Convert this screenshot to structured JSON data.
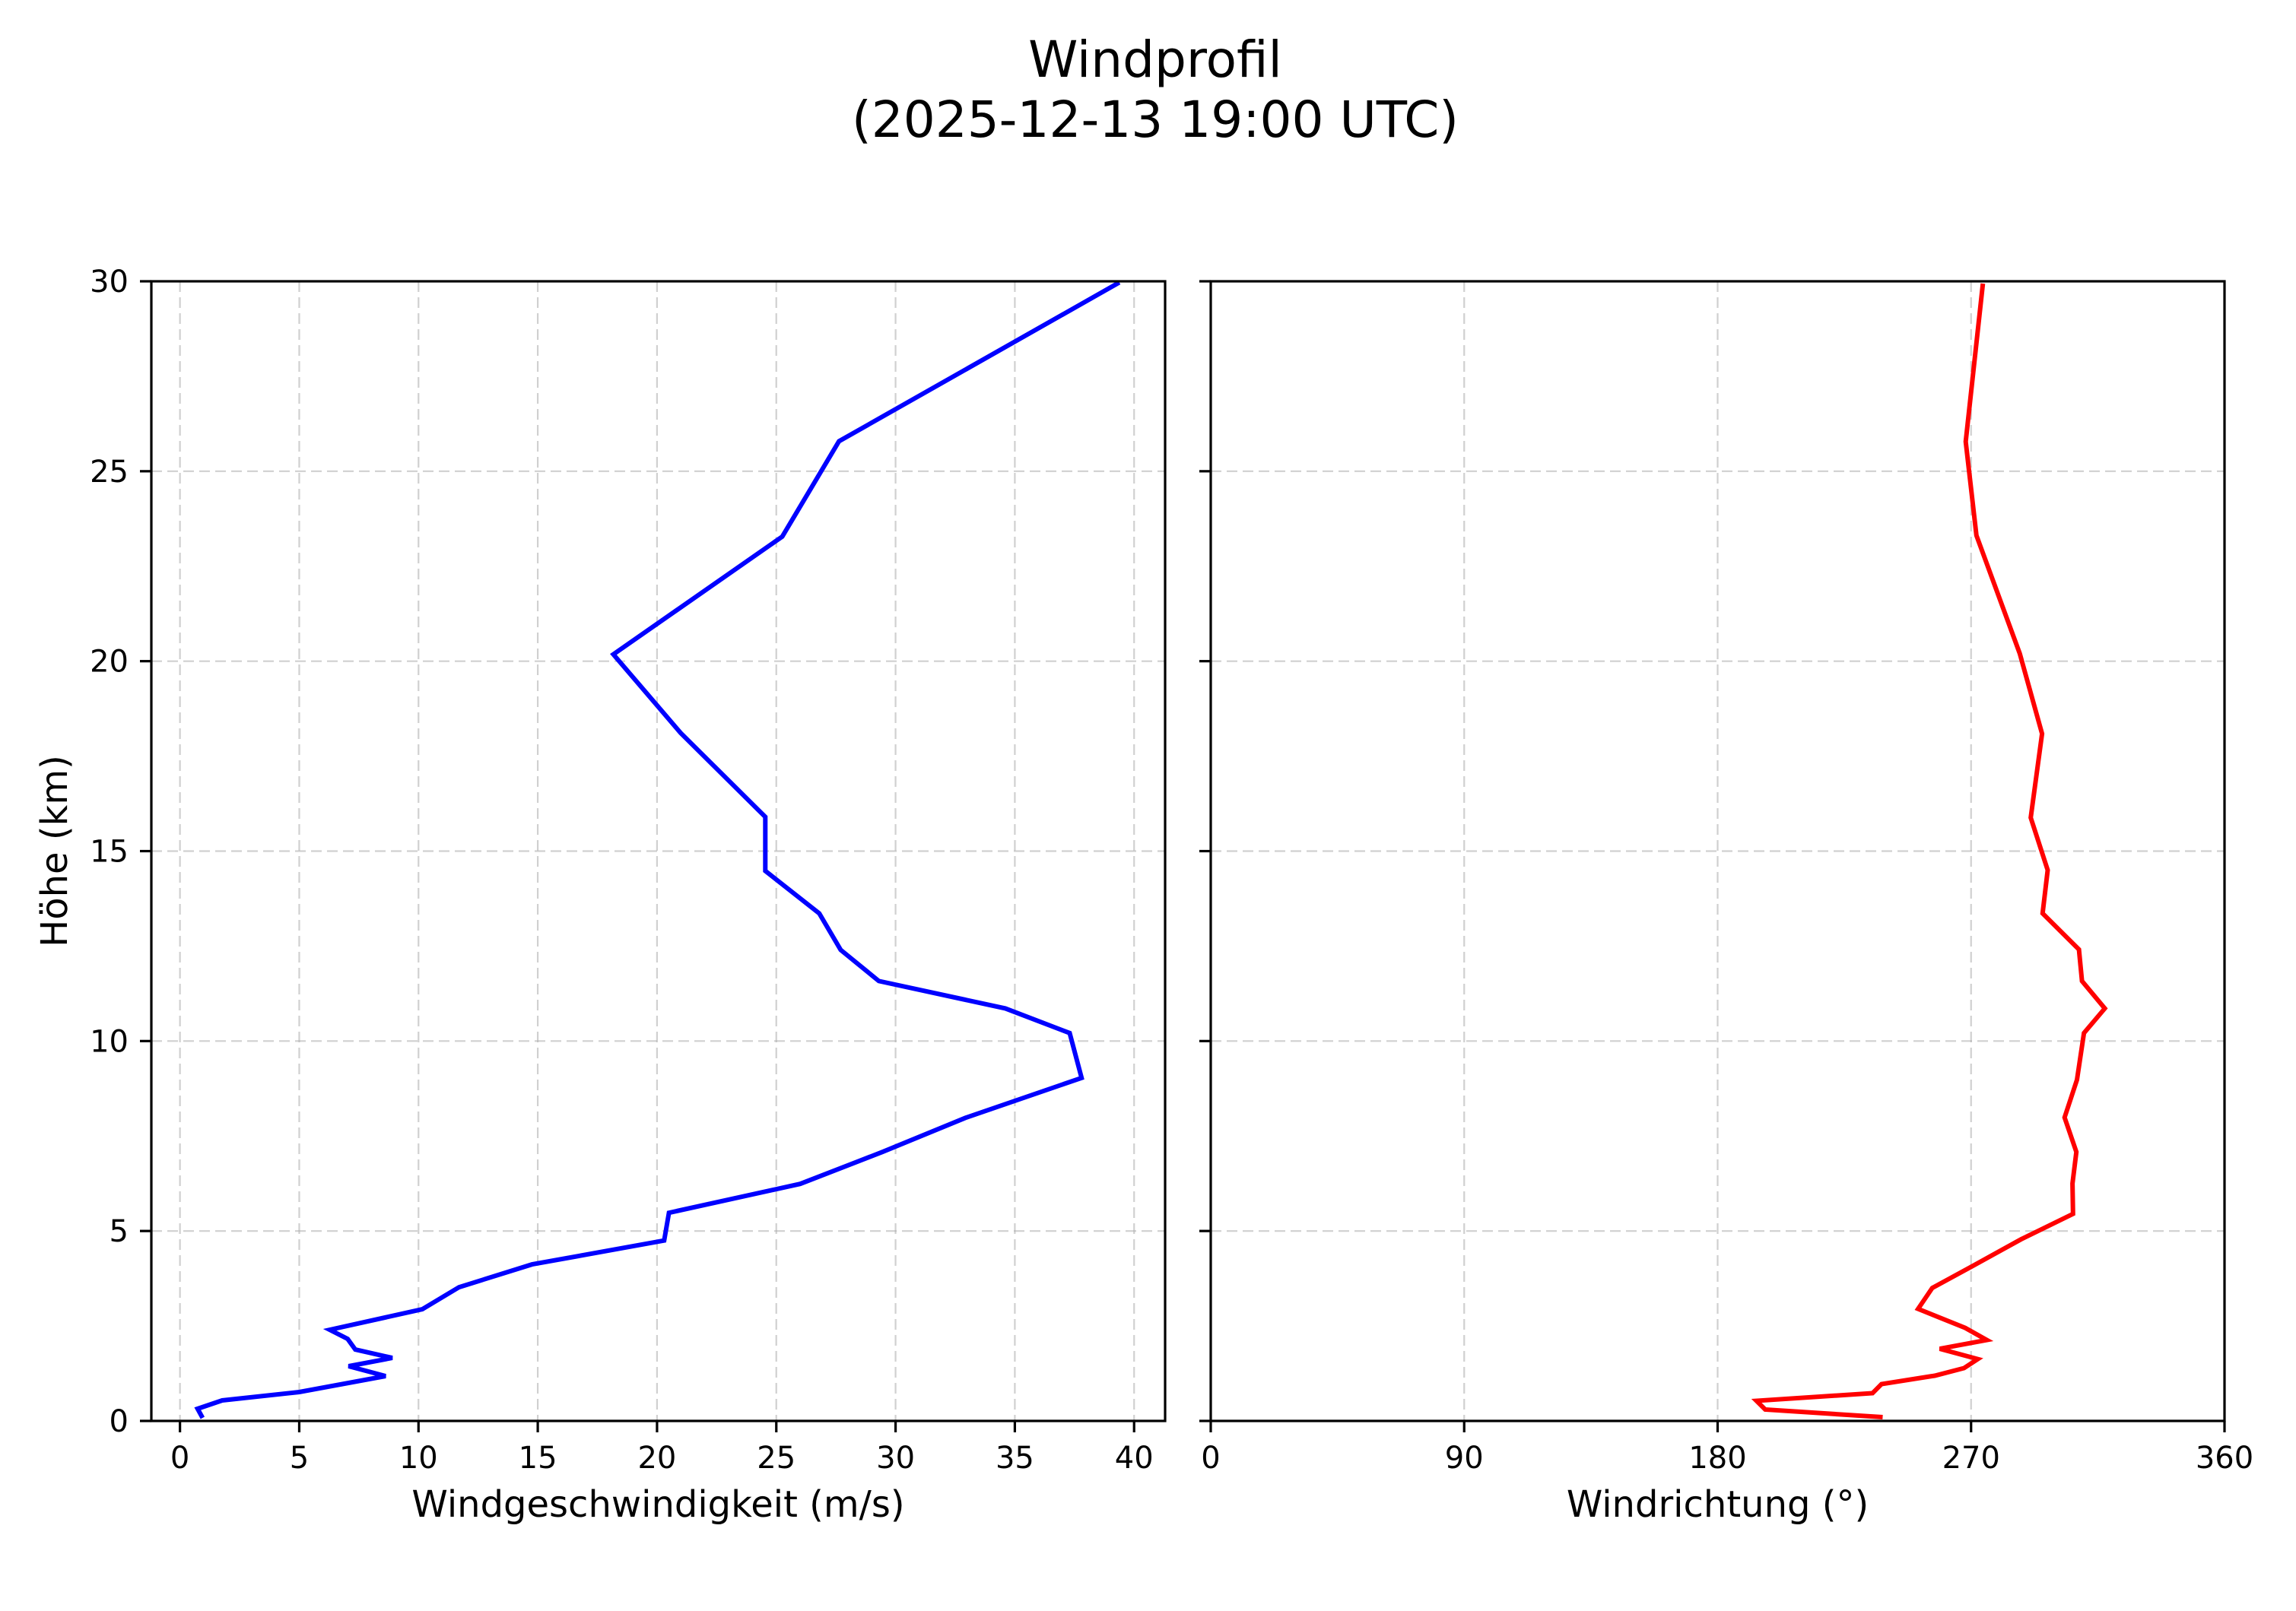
{
  "figure": {
    "title_line1": "Windprofil",
    "title_line2": "(2025-12-13 19:00 UTC)"
  },
  "chart_data": [
    {
      "type": "line",
      "panel": "left",
      "title": "",
      "xlabel": "Windgeschwindigkeit (m/s)",
      "ylabel": "Höhe (km)",
      "xlim": [
        -1.2,
        41.3
      ],
      "ylim": [
        0,
        30
      ],
      "xticks": [
        0,
        5,
        10,
        15,
        20,
        25,
        30,
        35,
        40
      ],
      "yticks": [
        0,
        5,
        10,
        15,
        20,
        25,
        30
      ],
      "grid": true,
      "series": [
        {
          "name": "Windgeschwindigkeit",
          "color": "#0000ff",
          "x": [
            0.95,
            0.74,
            1.77,
            5.0,
            8.62,
            7.07,
            8.9,
            7.35,
            7.03,
            6.28,
            10.16,
            11.7,
            14.76,
            20.3,
            20.5,
            26.0,
            29.45,
            32.93,
            37.8,
            37.3,
            34.6,
            29.3,
            27.7,
            26.8,
            24.54,
            24.54,
            20.99,
            18.17,
            25.25,
            27.63,
            39.38
          ],
          "y": [
            0.08,
            0.32,
            0.54,
            0.76,
            1.18,
            1.44,
            1.66,
            1.88,
            2.16,
            2.4,
            2.94,
            3.52,
            4.12,
            4.75,
            5.48,
            6.24,
            7.08,
            7.98,
            9.03,
            10.21,
            10.86,
            11.58,
            12.4,
            13.36,
            14.48,
            15.9,
            18.11,
            20.18,
            23.28,
            25.79,
            29.97
          ]
        }
      ]
    },
    {
      "type": "line",
      "panel": "right",
      "title": "",
      "xlabel": "Windrichtung (°)",
      "ylabel": "",
      "xlim": [
        0,
        360
      ],
      "ylim": [
        0,
        30
      ],
      "xticks": [
        0,
        90,
        180,
        270,
        360
      ],
      "yticks": [
        0,
        5,
        10,
        15,
        20,
        25,
        30
      ],
      "grid": true,
      "series": [
        {
          "name": "Windrichtung",
          "color": "#ff0000",
          "x": [
            238.6,
            196.9,
            193.8,
            235.0,
            238.2,
            257.1,
            267.5,
            272.4,
            258.9,
            275.6,
            267.9,
            251.2,
            256.2,
            270.6,
            287.7,
            306.2,
            306.0,
            307.4,
            303.2,
            307.6,
            310.1,
            317.5,
            309.4,
            308.3,
            295.4,
            297.2,
            291.2,
            295.2,
            287.3,
            271.9,
            268.1,
            274.2
          ],
          "y": [
            0.1,
            0.3,
            0.53,
            0.73,
            0.97,
            1.19,
            1.39,
            1.63,
            1.9,
            2.13,
            2.45,
            2.95,
            3.5,
            4.08,
            4.78,
            5.45,
            6.25,
            7.08,
            7.99,
            8.98,
            10.21,
            10.86,
            11.58,
            12.41,
            13.36,
            14.5,
            15.88,
            18.09,
            20.2,
            23.31,
            25.78,
            29.94
          ]
        }
      ]
    }
  ]
}
